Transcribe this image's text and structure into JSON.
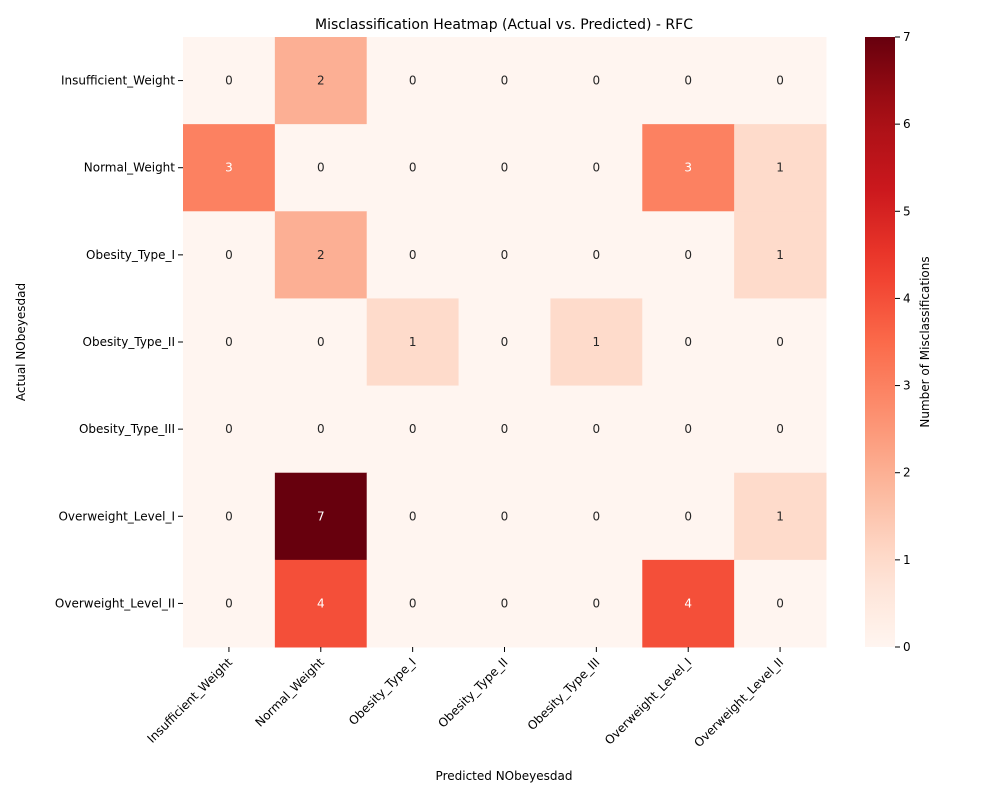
{
  "chart_data": {
    "type": "heatmap",
    "title": "Misclassification Heatmap (Actual vs. Predicted) - RFC",
    "xlabel": "Predicted NObeyesdad",
    "ylabel": "Actual NObeyesdad",
    "x_categories": [
      "Insufficient_Weight",
      "Normal_Weight",
      "Obesity_Type_I",
      "Obesity_Type_II",
      "Obesity_Type_III",
      "Overweight_Level_I",
      "Overweight_Level_II"
    ],
    "y_categories": [
      "Insufficient_Weight",
      "Normal_Weight",
      "Obesity_Type_I",
      "Obesity_Type_II",
      "Obesity_Type_III",
      "Overweight_Level_I",
      "Overweight_Level_II"
    ],
    "values": [
      [
        0,
        2,
        0,
        0,
        0,
        0,
        0
      ],
      [
        3,
        0,
        0,
        0,
        0,
        3,
        1
      ],
      [
        0,
        2,
        0,
        0,
        0,
        0,
        1
      ],
      [
        0,
        0,
        1,
        0,
        1,
        0,
        0
      ],
      [
        0,
        0,
        0,
        0,
        0,
        0,
        0
      ],
      [
        0,
        7,
        0,
        0,
        0,
        0,
        1
      ],
      [
        0,
        4,
        0,
        0,
        0,
        4,
        0
      ]
    ],
    "colorbar": {
      "label": "Number of Misclassifications",
      "min": 0,
      "max": 7,
      "ticks": [
        0,
        1,
        2,
        3,
        4,
        5,
        6,
        7
      ],
      "colormap": "Reds"
    },
    "annotations": true
  }
}
